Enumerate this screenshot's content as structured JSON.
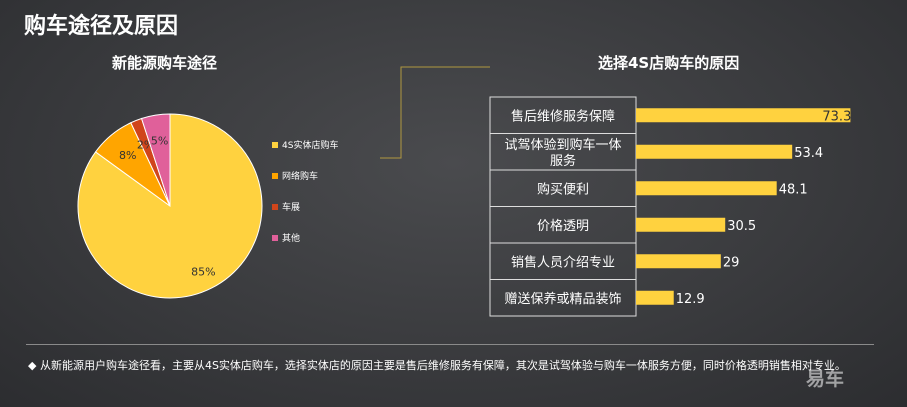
{
  "page_title": "购车途径及原因",
  "footnote": "◆ 从新能源用户购车途径看，主要从4S实体店购车，选择实体店的原因主要是售后维修服务有保障，其次是试驾体验与购车一体服务方便，同时价格透明销售相对专业。",
  "watermark": "易车",
  "colors": {
    "yellow": "#FFD23F",
    "orange": "#FFA500",
    "red": "#D0451B",
    "pink": "#E0609A",
    "box_border": "#dddddd",
    "connector": "#b09840"
  },
  "chart_data": [
    {
      "type": "pie",
      "title": "新能源购车途径",
      "labels": [
        "4S实体店购车",
        "网络购车",
        "车展",
        "其他"
      ],
      "values": [
        85,
        8,
        2,
        5
      ],
      "value_labels": [
        "85%",
        "8%",
        "2%",
        "5%"
      ],
      "colors": [
        "#FFD23F",
        "#FFA500",
        "#D0451B",
        "#E0609A"
      ],
      "legend": "right"
    },
    {
      "type": "bar",
      "orientation": "horizontal",
      "title": "选择4S店购车的原因",
      "categories": [
        "售后维修服务保障",
        "试驾体验到购车一体服务",
        "购买便利",
        "价格透明",
        "销售人员介绍专业",
        "赠送保养或精品装饰"
      ],
      "category_lines": [
        [
          "售后维修服务保障"
        ],
        [
          "试驾体验到购车一体",
          "服务"
        ],
        [
          "购买便利"
        ],
        [
          "价格透明"
        ],
        [
          "销售人员介绍专业"
        ],
        [
          "赠送保养或精品装饰"
        ]
      ],
      "values": [
        73.3,
        53.4,
        48.1,
        30.5,
        29,
        12.9
      ],
      "value_labels": [
        "73.3",
        "53.4",
        "48.1",
        "30.5",
        "29",
        "12.9"
      ],
      "color": "#FFD23F",
      "xlim": [
        0,
        80
      ]
    }
  ]
}
